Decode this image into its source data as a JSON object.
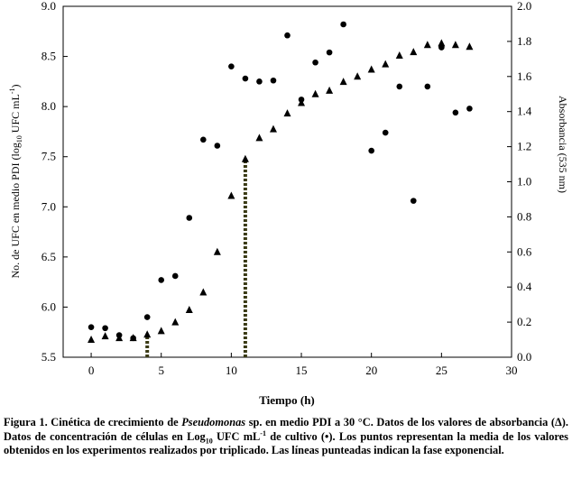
{
  "chart_data": {
    "type": "scatter",
    "xlabel": "Tiempo (h)",
    "ylabel_left": "No. de UFC en medio PDI (log10 UFC mL-1)",
    "ylabel_right": "Absorbancia (535 nm)",
    "xlim": [
      -2,
      30
    ],
    "ylim_left": [
      5.5,
      9.0
    ],
    "ylim_right": [
      0.0,
      2.0
    ],
    "x_ticks": [
      "0",
      "5",
      "10",
      "15",
      "20",
      "25",
      "30"
    ],
    "y_left_ticks": [
      "5.5",
      "6.0",
      "6.5",
      "7.0",
      "7.5",
      "8.0",
      "8.5",
      "9.0"
    ],
    "y_right_ticks": [
      "0.0",
      "0.2",
      "0.4",
      "0.6",
      "0.8",
      "1.0",
      "1.2",
      "1.4",
      "1.6",
      "1.8",
      "2.0"
    ],
    "grid": false,
    "exponential_phase_lines": [
      4,
      11
    ],
    "series": [
      {
        "marker": "circle",
        "axis": "left",
        "points": [
          [
            0,
            5.8
          ],
          [
            1,
            5.79
          ],
          [
            2,
            5.72
          ],
          [
            3,
            5.69
          ],
          [
            4,
            5.9
          ],
          [
            5,
            6.27
          ],
          [
            6,
            6.31
          ],
          [
            7,
            6.89
          ],
          [
            8,
            7.67
          ],
          [
            9,
            7.61
          ],
          [
            10,
            8.4
          ],
          [
            11,
            8.28
          ],
          [
            12,
            8.25
          ],
          [
            13,
            8.26
          ],
          [
            14,
            8.71
          ],
          [
            15,
            8.07
          ],
          [
            16,
            8.44
          ],
          [
            17,
            8.54
          ],
          [
            18,
            8.82
          ],
          [
            20,
            7.56
          ],
          [
            21,
            7.74
          ],
          [
            22,
            8.2
          ],
          [
            23,
            7.06
          ],
          [
            24,
            8.2
          ],
          [
            25,
            8.59
          ],
          [
            26,
            7.94
          ],
          [
            27,
            7.98
          ]
        ]
      },
      {
        "marker": "triangle",
        "axis": "right",
        "points": [
          [
            0,
            0.1
          ],
          [
            1,
            0.12
          ],
          [
            2,
            0.11
          ],
          [
            3,
            0.11
          ],
          [
            4,
            0.13
          ],
          [
            5,
            0.15
          ],
          [
            6,
            0.2
          ],
          [
            7,
            0.27
          ],
          [
            8,
            0.37
          ],
          [
            9,
            0.6
          ],
          [
            10,
            0.92
          ],
          [
            11,
            1.13
          ],
          [
            12,
            1.25
          ],
          [
            13,
            1.3
          ],
          [
            14,
            1.39
          ],
          [
            15,
            1.45
          ],
          [
            16,
            1.5
          ],
          [
            17,
            1.52
          ],
          [
            18,
            1.57
          ],
          [
            19,
            1.6
          ],
          [
            20,
            1.64
          ],
          [
            21,
            1.67
          ],
          [
            22,
            1.72
          ],
          [
            23,
            1.74
          ],
          [
            24,
            1.78
          ],
          [
            25,
            1.79
          ],
          [
            26,
            1.78
          ],
          [
            27,
            1.77
          ]
        ]
      }
    ]
  },
  "caption": {
    "label": "Figura 1. Cinética de crecimiento de ",
    "organism": "Pseudomonas",
    "part1": " sp. en medio PDI a 30 °C. Datos de los valores de absorbancia (Δ). Datos de concentración de células en Log",
    "sub": "10",
    "part2": " UFC mL",
    "sup": "-1",
    "part3": " de cultivo (•).  Los puntos representan la media de los valores obtenidos en los experimentos realizados por triplicado. Las líneas punteadas indican la fase exponencial."
  }
}
